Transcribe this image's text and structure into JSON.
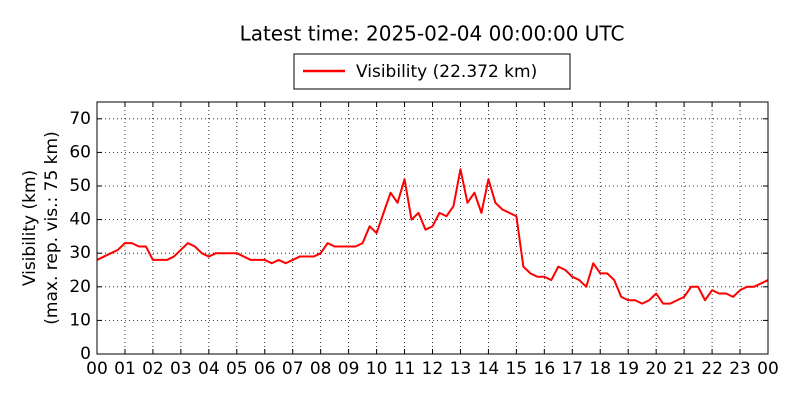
{
  "chart_data": {
    "type": "line",
    "title": "Latest time: 2025-02-04 00:00:00 UTC",
    "ylabel": [
      "Visibility (km)",
      "(max. rep. vis.: 75 km)"
    ],
    "x": [
      0,
      0.25,
      0.5,
      0.75,
      1,
      1.25,
      1.5,
      1.75,
      2,
      2.25,
      2.5,
      2.75,
      3,
      3.25,
      3.5,
      3.75,
      4,
      4.25,
      4.5,
      4.75,
      5,
      5.25,
      5.5,
      5.75,
      6,
      6.25,
      6.5,
      6.75,
      7,
      7.25,
      7.5,
      7.75,
      8,
      8.25,
      8.5,
      8.75,
      9,
      9.25,
      9.5,
      9.75,
      10,
      10.25,
      10.5,
      10.75,
      11,
      11.25,
      11.5,
      11.75,
      12,
      12.25,
      12.5,
      12.75,
      13,
      13.25,
      13.5,
      13.75,
      14,
      14.25,
      14.5,
      14.75,
      15,
      15.25,
      15.5,
      15.75,
      16,
      16.25,
      16.5,
      16.75,
      17,
      17.25,
      17.5,
      17.75,
      18,
      18.25,
      18.5,
      18.75,
      19,
      19.25,
      19.5,
      19.75,
      20,
      20.25,
      20.5,
      20.75,
      21,
      21.25,
      21.5,
      21.75,
      22,
      22.25,
      22.5,
      22.75,
      23,
      23.25,
      23.5,
      23.75,
      24
    ],
    "series": [
      {
        "name": "Visibility (22.372 km)",
        "color": "#ff0000",
        "values": [
          28,
          29,
          30,
          31,
          33,
          33,
          32,
          32,
          28,
          28,
          28,
          29,
          31,
          33,
          32,
          30,
          29,
          30,
          30,
          30,
          30,
          29,
          28,
          28,
          28,
          27,
          28,
          27,
          28,
          29,
          29,
          29,
          30,
          33,
          32,
          32,
          32,
          32,
          33,
          38,
          36,
          42,
          48,
          45,
          52,
          40,
          42,
          37,
          38,
          42,
          41,
          44,
          55,
          45,
          48,
          42,
          52,
          45,
          43,
          42,
          41,
          26,
          24,
          23,
          23,
          22,
          26,
          25,
          23,
          22,
          20,
          27,
          24,
          24,
          22,
          17,
          16,
          16,
          15,
          16,
          18,
          15,
          15,
          16,
          17,
          20,
          20,
          16,
          19,
          18,
          18,
          17,
          19,
          20,
          20,
          21,
          22
        ]
      }
    ],
    "xlim": [
      0,
      24
    ],
    "xticks": [
      {
        "value": 0,
        "label": "00"
      },
      {
        "value": 1,
        "label": "01"
      },
      {
        "value": 2,
        "label": "02"
      },
      {
        "value": 3,
        "label": "03"
      },
      {
        "value": 4,
        "label": "04"
      },
      {
        "value": 5,
        "label": "05"
      },
      {
        "value": 6,
        "label": "06"
      },
      {
        "value": 7,
        "label": "07"
      },
      {
        "value": 8,
        "label": "08"
      },
      {
        "value": 9,
        "label": "09"
      },
      {
        "value": 10,
        "label": "10"
      },
      {
        "value": 11,
        "label": "11"
      },
      {
        "value": 12,
        "label": "12"
      },
      {
        "value": 13,
        "label": "13"
      },
      {
        "value": 14,
        "label": "14"
      },
      {
        "value": 15,
        "label": "15"
      },
      {
        "value": 16,
        "label": "16"
      },
      {
        "value": 17,
        "label": "17"
      },
      {
        "value": 18,
        "label": "18"
      },
      {
        "value": 19,
        "label": "19"
      },
      {
        "value": 20,
        "label": "20"
      },
      {
        "value": 21,
        "label": "21"
      },
      {
        "value": 22,
        "label": "22"
      },
      {
        "value": 23,
        "label": "23"
      },
      {
        "value": 24,
        "label": "00"
      }
    ],
    "ylim": [
      0,
      75
    ],
    "yticks": [
      0,
      10,
      20,
      30,
      40,
      50,
      60,
      70
    ],
    "grid": true
  }
}
